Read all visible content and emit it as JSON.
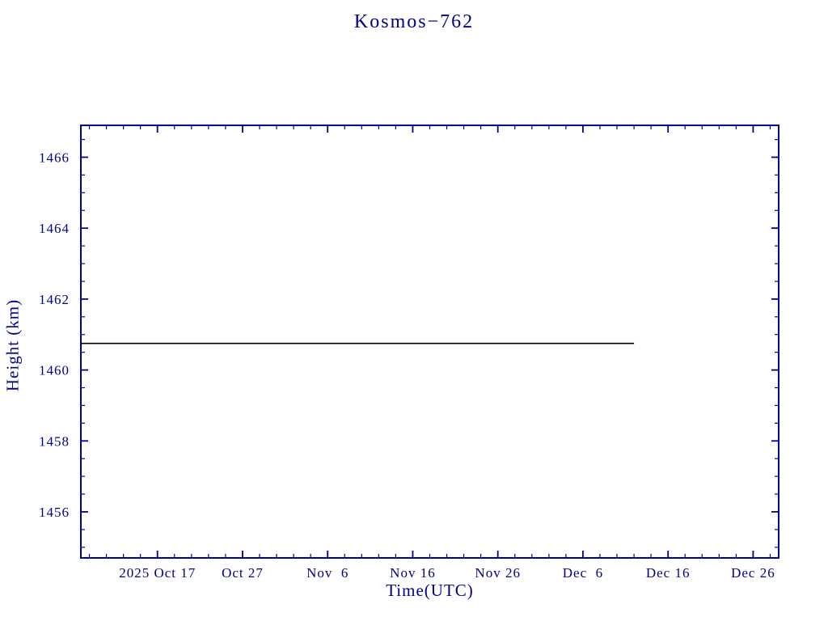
{
  "chart_data": {
    "type": "line",
    "title": "Kosmos−762",
    "xlabel": "Time(UTC)",
    "ylabel": "Height (km)",
    "axis_color": "#00008b",
    "grid": false,
    "legend": "none",
    "x_range": [
      "2025-10-08",
      "2025-12-29"
    ],
    "x_ticks": [
      {
        "label": "2025 Oct 17",
        "date": "2025-10-17"
      },
      {
        "label": "Oct 27",
        "date": "2025-10-27"
      },
      {
        "label": "Nov  6",
        "date": "2025-11-06"
      },
      {
        "label": "Nov 16",
        "date": "2025-11-16"
      },
      {
        "label": "Nov 26",
        "date": "2025-11-26"
      },
      {
        "label": "Dec  6",
        "date": "2025-12-06"
      },
      {
        "label": "Dec 16",
        "date": "2025-12-16"
      },
      {
        "label": "Dec 26",
        "date": "2025-12-26"
      }
    ],
    "x_minor_tick_days": 2,
    "ylim": [
      1454.7,
      1466.9
    ],
    "y_ticks": [
      1456,
      1458,
      1460,
      1462,
      1464,
      1466
    ],
    "y_minor_tick_step": 0.5,
    "series": [
      {
        "name": "height",
        "color": "#000000",
        "points": [
          {
            "date": "2025-10-08",
            "y": 1460.75
          },
          {
            "date": "2025-12-12",
            "y": 1460.75
          }
        ]
      }
    ]
  }
}
